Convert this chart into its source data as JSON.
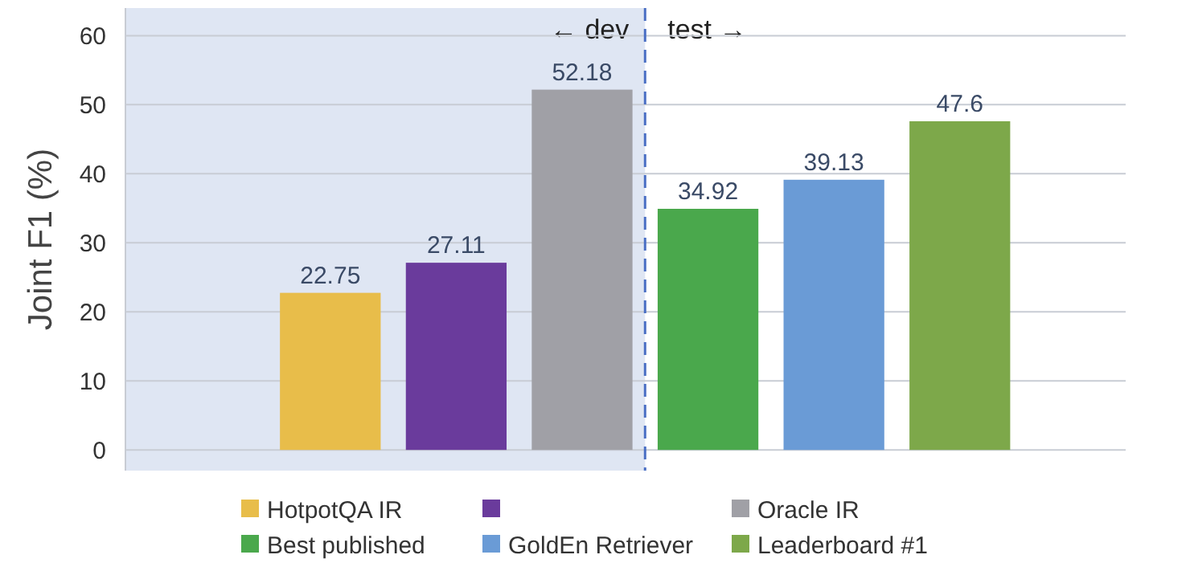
{
  "chart_data": {
    "type": "bar",
    "ylabel": "Joint F1 (%)",
    "categories": [
      null
    ],
    "ylim": [
      -3,
      64
    ],
    "yticks": [
      0,
      10,
      20,
      30,
      40,
      50,
      60
    ],
    "grid": "y",
    "legend": "bottom",
    "data_labels": true,
    "series": [
      {
        "name": "HotpotQA IR",
        "color": "#e8bd4a",
        "values": [
          22.75
        ]
      },
      {
        "color": "#6a3b9c",
        "values": [
          27.11
        ]
      },
      {
        "name": "Oracle IR",
        "color": "#a0a0a6",
        "values": [
          52.18
        ]
      },
      {
        "name": "Best published",
        "color": "#4aa84c",
        "values": [
          34.92
        ]
      },
      {
        "name": "GoldEn Retriever",
        "color": "#6a9bd6",
        "values": [
          39.13
        ]
      },
      {
        "name": "Leaderboard #1",
        "color": "#7da84a",
        "values": [
          47.6
        ]
      }
    ],
    "annotations": [
      "← dev",
      "test →"
    ]
  }
}
